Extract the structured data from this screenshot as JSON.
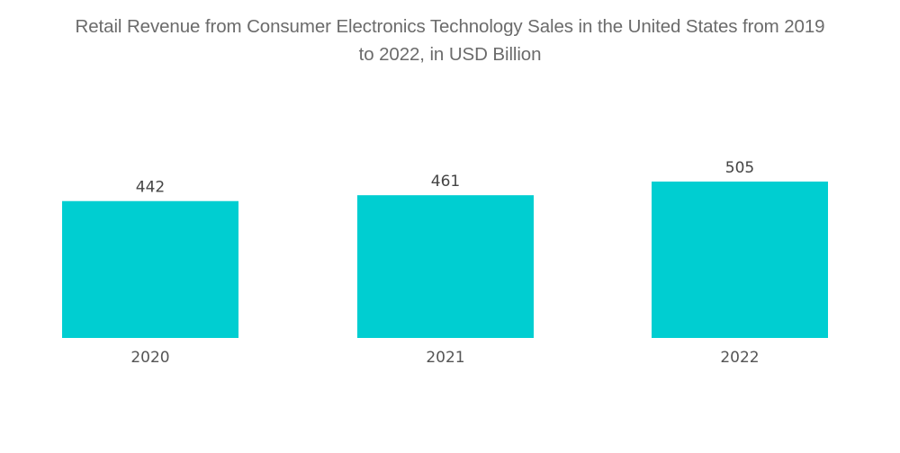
{
  "chart_data": {
    "type": "bar",
    "title_lines": [
      "Retail Revenue from Consumer Electronics Technology Sales in the United States from 2019",
      "to 2022, in USD Billion"
    ],
    "title": "Retail Revenue from Consumer Electronics Technology Sales in the United States from 2019 to 2022, in USD Billion",
    "categories": [
      "2020",
      "2021",
      "2022"
    ],
    "values": [
      442,
      461,
      505
    ],
    "data_labels": [
      "442",
      "461",
      "505"
    ],
    "xlabel": "",
    "ylabel": "",
    "ylim": [
      0,
      505
    ],
    "grid": false,
    "legend": "none",
    "bar_color": "#00CED1"
  }
}
